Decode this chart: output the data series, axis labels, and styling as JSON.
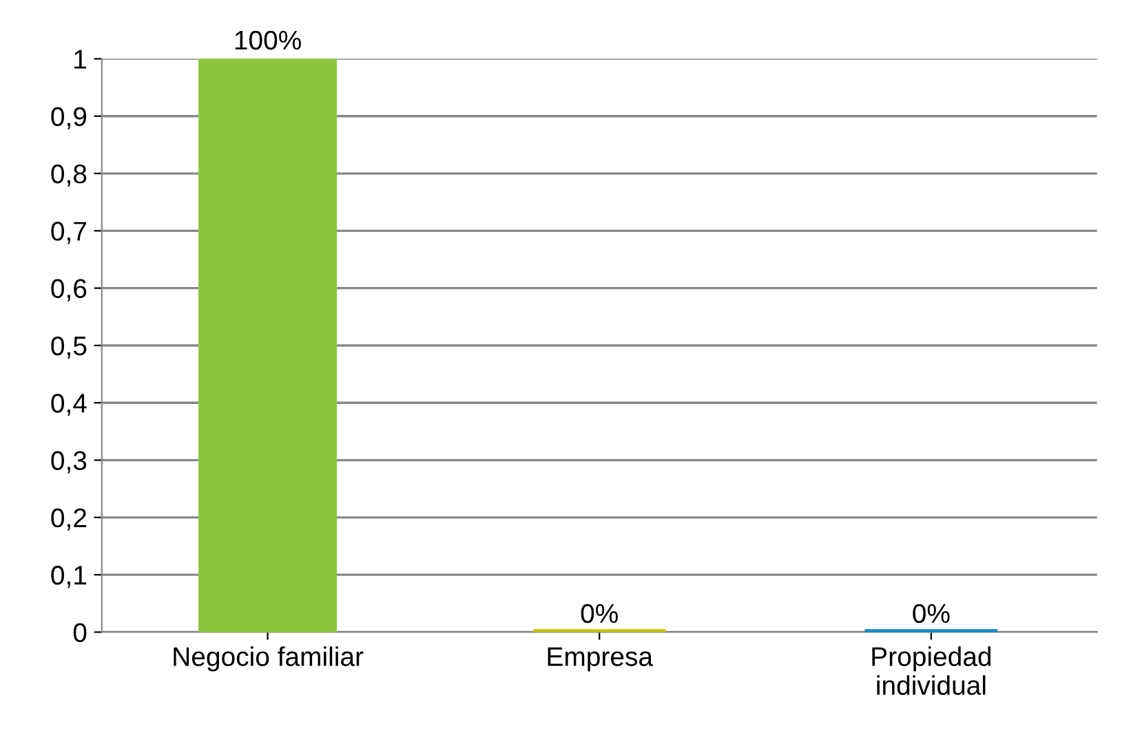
{
  "chart_data": {
    "type": "bar",
    "categories": [
      "Negocio familiar",
      "Empresa",
      "Propiedad\nindividual"
    ],
    "values": [
      1,
      0,
      0
    ],
    "colors": [
      "#8cc63f",
      "#c4c400",
      "#0e8ac6"
    ],
    "value_labels": [
      "100%",
      "0%",
      "0%"
    ],
    "ylim": [
      0,
      1
    ],
    "yticks": [
      0,
      {
        "value": 0.1,
        "label": "0,1"
      },
      {
        "value": 0.2,
        "label": "0,2"
      },
      {
        "value": 0.3,
        "label": "0,3"
      },
      {
        "value": 0.4,
        "label": "0,4"
      },
      {
        "value": 0.5,
        "label": "0,5"
      },
      {
        "value": 0.6,
        "label": "0,6"
      },
      {
        "value": 0.7,
        "label": "0,7"
      },
      {
        "value": 0.8,
        "label": "0,8"
      },
      {
        "value": 0.9,
        "label": "0,9"
      },
      1
    ],
    "grid": "y"
  }
}
